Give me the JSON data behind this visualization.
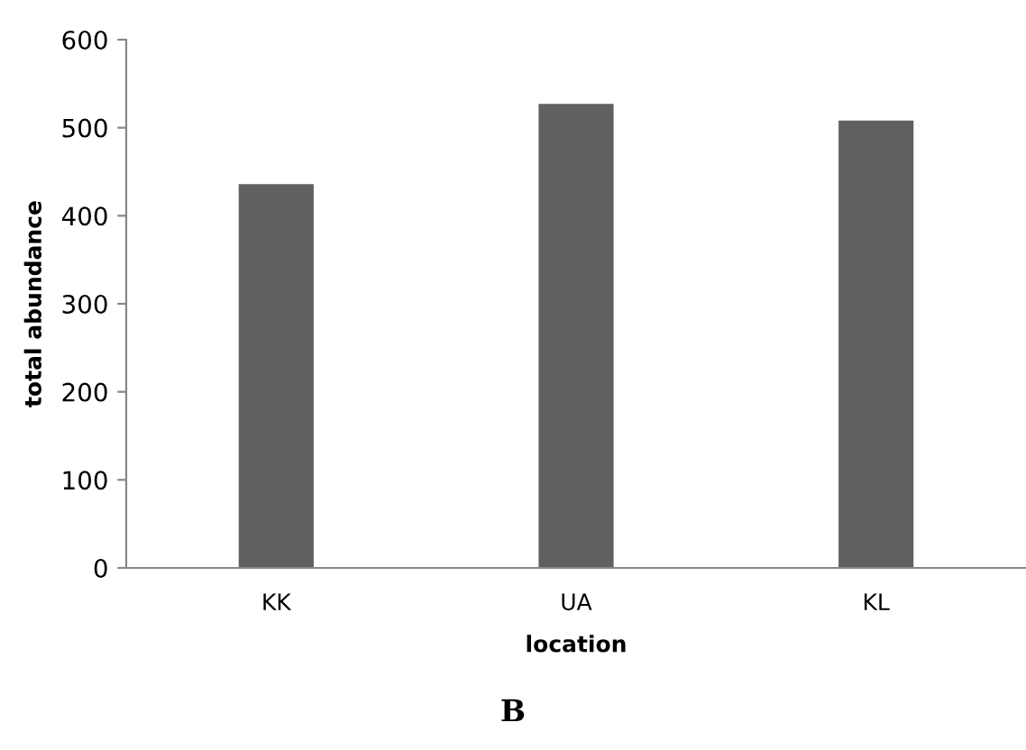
{
  "chart_data": {
    "type": "bar",
    "xlabel": "location",
    "ylabel": "total abundance",
    "categories": [
      "KK",
      "UA",
      "KL"
    ],
    "values": [
      436,
      527,
      508
    ],
    "color": "#606060",
    "ylim": [
      0,
      600
    ],
    "yticks": [
      0,
      100,
      200,
      300,
      400,
      500,
      600
    ],
    "grid": false,
    "annotations": [
      "B"
    ]
  }
}
